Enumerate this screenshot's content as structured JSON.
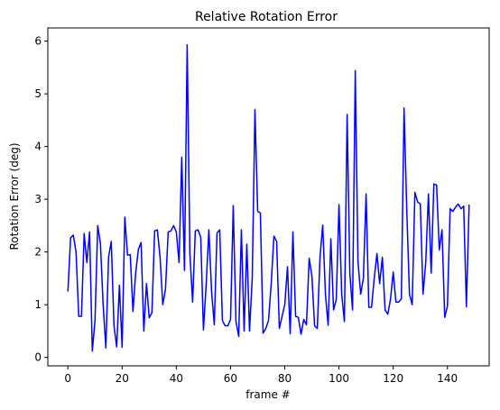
{
  "chart_data": {
    "type": "line",
    "title": "Relative Rotation Error",
    "xlabel": "frame #",
    "ylabel": "Rotation Error (deg)",
    "xlim": [
      -7.4,
      155.4
    ],
    "ylim": [
      -0.16,
      6.25
    ],
    "xticks": [
      0,
      20,
      40,
      60,
      80,
      100,
      120,
      140
    ],
    "yticks": [
      0,
      1,
      2,
      3,
      4,
      5,
      6
    ],
    "grid": false,
    "color": "#0000ff",
    "series": [
      {
        "name": "",
        "x": [
          0,
          1,
          2,
          3,
          4,
          5,
          6,
          7,
          8,
          9,
          10,
          11,
          12,
          13,
          14,
          15,
          16,
          17,
          18,
          19,
          20,
          21,
          22,
          23,
          24,
          25,
          26,
          27,
          28,
          29,
          30,
          31,
          32,
          33,
          34,
          35,
          36,
          37,
          38,
          39,
          40,
          41,
          42,
          43,
          44,
          45,
          46,
          47,
          48,
          49,
          50,
          51,
          52,
          53,
          54,
          55,
          56,
          57,
          58,
          59,
          60,
          61,
          62,
          63,
          64,
          65,
          66,
          67,
          68,
          69,
          70,
          71,
          72,
          73,
          74,
          75,
          76,
          77,
          78,
          79,
          80,
          81,
          82,
          83,
          84,
          85,
          86,
          87,
          88,
          89,
          90,
          91,
          92,
          93,
          94,
          95,
          96,
          97,
          98,
          99,
          100,
          101,
          102,
          103,
          104,
          105,
          106,
          107,
          108,
          109,
          110,
          111,
          112,
          113,
          114,
          115,
          116,
          117,
          118,
          119,
          120,
          121,
          122,
          123,
          124,
          125,
          126,
          127,
          128,
          129,
          130,
          131,
          132,
          133,
          134,
          135,
          136,
          137,
          138,
          139,
          140,
          141,
          142,
          143,
          144,
          145,
          146,
          147,
          148
        ],
        "values": [
          1.25,
          2.27,
          2.32,
          2.0,
          0.78,
          0.78,
          2.35,
          1.8,
          2.38,
          0.12,
          0.7,
          2.5,
          2.16,
          1.0,
          0.18,
          1.9,
          2.2,
          0.6,
          0.2,
          1.37,
          0.19,
          2.66,
          1.94,
          1.95,
          0.87,
          1.6,
          2.05,
          2.18,
          0.5,
          1.4,
          0.75,
          0.85,
          2.4,
          2.42,
          1.9,
          1.0,
          1.3,
          2.38,
          2.4,
          2.5,
          2.38,
          1.8,
          3.8,
          1.65,
          5.93,
          1.97,
          1.05,
          2.4,
          2.42,
          2.28,
          0.52,
          1.38,
          2.42,
          1.25,
          0.62,
          2.36,
          2.42,
          0.7,
          0.6,
          0.6,
          0.72,
          2.88,
          0.68,
          0.4,
          2.42,
          0.5,
          2.15,
          0.5,
          1.5,
          4.7,
          2.77,
          2.74,
          0.46,
          0.55,
          0.7,
          1.4,
          2.3,
          2.2,
          0.55,
          0.78,
          1.0,
          1.72,
          0.45,
          2.38,
          0.78,
          0.76,
          0.44,
          0.72,
          0.62,
          1.88,
          1.55,
          0.6,
          0.55,
          1.9,
          2.51,
          1.2,
          0.61,
          2.25,
          0.9,
          1.1,
          2.9,
          1.2,
          0.68,
          4.61,
          1.6,
          0.9,
          5.44,
          1.82,
          1.2,
          1.5,
          3.1,
          0.95,
          0.95,
          1.5,
          1.97,
          1.4,
          1.9,
          0.9,
          0.82,
          1.1,
          1.62,
          1.05,
          1.05,
          1.11,
          4.73,
          2.8,
          1.2,
          1.0,
          3.13,
          2.95,
          2.91,
          1.2,
          1.8,
          3.1,
          1.6,
          3.29,
          3.27,
          2.04,
          2.42,
          0.76,
          0.97,
          2.82,
          2.77,
          2.85,
          2.91,
          2.82,
          2.87,
          0.96,
          2.9
        ]
      }
    ]
  }
}
